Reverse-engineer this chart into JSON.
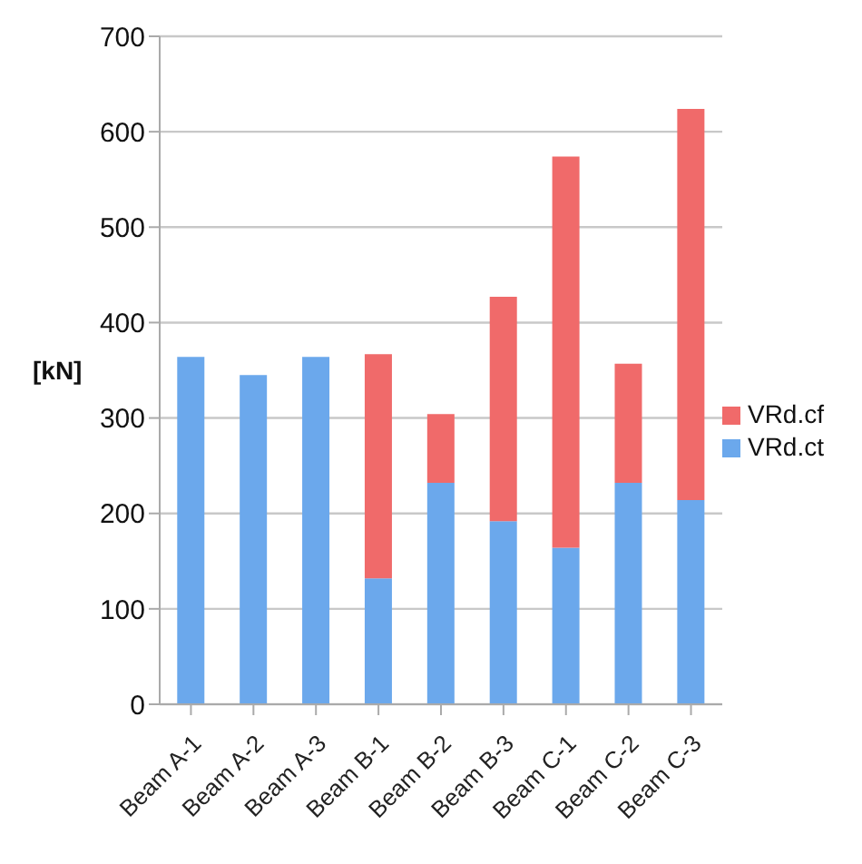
{
  "chart_data": {
    "type": "bar",
    "ylabel": "[kN]",
    "stacked": true,
    "categories": [
      "Beam A-1",
      "Beam A-2",
      "Beam A-3",
      "Beam B-1",
      "Beam B-2",
      "Beam B-3",
      "Beam C-1",
      "Beam C-2",
      "Beam C-3"
    ],
    "series": [
      {
        "name": "VRd.ct",
        "color": "#6ba8ec",
        "values": [
          364,
          345,
          364,
          132,
          232,
          192,
          164,
          232,
          214
        ]
      },
      {
        "name": "VRd.cf",
        "color": "#f06a6a",
        "values": [
          null,
          null,
          null,
          235,
          72,
          235,
          410,
          125,
          410
        ]
      }
    ],
    "ylim": [
      0,
      700
    ],
    "yticks": [
      0,
      100,
      200,
      300,
      400,
      500,
      600,
      700
    ],
    "grid": "y",
    "legend": "right"
  }
}
